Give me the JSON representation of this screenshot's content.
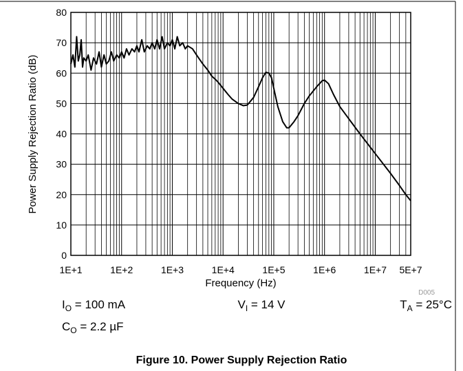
{
  "chart_data": {
    "type": "line",
    "title": "Figure 10. Power Supply Rejection Ratio",
    "x_label": "Frequency (Hz)",
    "y_label": "Power Supply Rejection Ratio (dB)",
    "code": "D005",
    "annotations": [
      {
        "main": "I",
        "sub": "O",
        "rest": " = 100 mA"
      },
      {
        "main": "V",
        "sub": "I",
        "rest": " = 14 V"
      },
      {
        "main": "T",
        "sub": "A",
        "rest": " = 25°C"
      },
      {
        "main": "C",
        "sub": "O",
        "rest": " = 2.2 µF"
      }
    ],
    "x_scale": "log",
    "grid": true,
    "minor_grid": true,
    "xlim": [
      10,
      50000000
    ],
    "ylim": [
      0,
      80
    ],
    "xticks": [
      {
        "value": 10,
        "label": "1E+1"
      },
      {
        "value": 100,
        "label": "1E+2"
      },
      {
        "value": 1000,
        "label": "1E+3"
      },
      {
        "value": 10000,
        "label": "1E+4"
      },
      {
        "value": 100000,
        "label": "1E+5"
      },
      {
        "value": 1000000,
        "label": "1E+6"
      },
      {
        "value": 10000000,
        "label": "1E+7"
      },
      {
        "value": 50000000,
        "label": "5E+7"
      }
    ],
    "yticks": [
      0,
      10,
      20,
      30,
      40,
      50,
      60,
      70,
      80
    ],
    "x": [
      10,
      11,
      12,
      13,
      14,
      15,
      16,
      17,
      18,
      20,
      22,
      25,
      28,
      32,
      36,
      40,
      45,
      50,
      56,
      63,
      70,
      80,
      90,
      100,
      112,
      125,
      140,
      160,
      180,
      200,
      220,
      250,
      280,
      320,
      360,
      400,
      450,
      500,
      560,
      630,
      700,
      800,
      900,
      1000,
      1120,
      1250,
      1400,
      1600,
      1800,
      2000,
      2500,
      3000,
      4000,
      5000,
      6000,
      7000,
      8000,
      10000,
      12500,
      15000,
      20000,
      25000,
      30000,
      40000,
      50000,
      60000,
      70000,
      80000,
      90000,
      100000,
      120000,
      150000,
      180000,
      200000,
      250000,
      300000,
      400000,
      500000,
      700000,
      900000,
      1000000,
      1200000,
      1500000,
      2000000,
      3000000,
      5000000,
      10000000,
      20000000,
      30000000,
      40000000,
      50000000
    ],
    "series": [
      {
        "name": "PSRR",
        "color": "#000000",
        "values": [
          63,
          66,
          62,
          72,
          64,
          66,
          71,
          62,
          65,
          64,
          66,
          61,
          65,
          63,
          67,
          62,
          66,
          63,
          64,
          67,
          64,
          66,
          65,
          67,
          65,
          68,
          66,
          68,
          67,
          69,
          67,
          71,
          67,
          69,
          68,
          70,
          68,
          71,
          68,
          72,
          68,
          70,
          69,
          71,
          68,
          72,
          69,
          70,
          68,
          69,
          68,
          66,
          63,
          61,
          59,
          58,
          57,
          55,
          53,
          51.5,
          50,
          49.3,
          49.5,
          52,
          55.5,
          58.5,
          60.3,
          60,
          58.5,
          55,
          49,
          44,
          42,
          42,
          44,
          46,
          50,
          52.5,
          55.5,
          57.5,
          57.7,
          56.5,
          53,
          49,
          45,
          40,
          33.5,
          27,
          23,
          20,
          18
        ]
      }
    ]
  }
}
